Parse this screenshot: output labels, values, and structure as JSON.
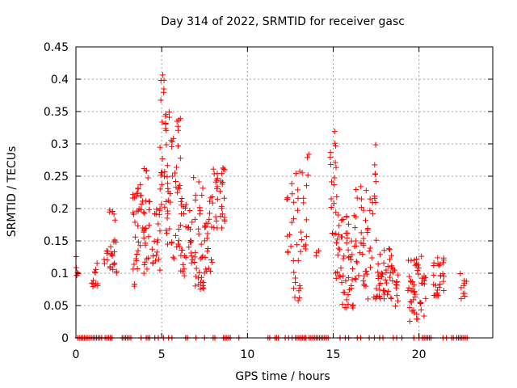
{
  "chart_data": {
    "type": "scatter",
    "title": "Day 314 of 2022, SRMTID for receiver gasc",
    "xlabel": "GPS time / hours",
    "ylabel": "SRMTID / TECUs",
    "xlim": [
      0,
      24.3
    ],
    "ylim": [
      0,
      0.45
    ],
    "x_ticks": [
      0,
      5,
      10,
      15,
      20
    ],
    "x_tick_labels": [
      "0",
      "5",
      "10",
      "15",
      "20"
    ],
    "y_ticks": [
      0,
      0.05,
      0.1,
      0.15,
      0.2,
      0.25,
      0.3,
      0.35,
      0.4,
      0.45
    ],
    "y_tick_labels": [
      "0",
      "0.05",
      "0.1",
      "0.15",
      "0.2",
      "0.25",
      "0.3",
      "0.35",
      "0.4",
      "0.45"
    ],
    "grid": true,
    "marker": "+",
    "colors": {
      "marker": "#ff0000",
      "grid": "#a0a0a0",
      "axis": "#000000"
    },
    "clusters": [
      {
        "x": [
          0.0,
          0.2
        ],
        "y": [
          0.09,
          0.13
        ],
        "n": 6
      },
      {
        "x": [
          0.9,
          1.3
        ],
        "y": [
          0.075,
          0.12
        ],
        "n": 12
      },
      {
        "x": [
          1.6,
          1.9
        ],
        "y": [
          0.115,
          0.135
        ],
        "n": 6
      },
      {
        "x": [
          1.95,
          2.4
        ],
        "y": [
          0.1,
          0.2
        ],
        "n": 22
      },
      {
        "x": [
          3.3,
          3.7
        ],
        "y": [
          0.07,
          0.24
        ],
        "n": 26
      },
      {
        "x": [
          3.7,
          4.3
        ],
        "y": [
          0.095,
          0.265
        ],
        "n": 34
      },
      {
        "x": [
          4.4,
          4.9
        ],
        "y": [
          0.1,
          0.21
        ],
        "n": 20
      },
      {
        "x": [
          4.9,
          5.2
        ],
        "y": [
          0.2,
          0.41
        ],
        "n": 18
      },
      {
        "x": [
          5.2,
          5.5
        ],
        "y": [
          0.13,
          0.35
        ],
        "n": 24
      },
      {
        "x": [
          5.5,
          6.1
        ],
        "y": [
          0.12,
          0.34
        ],
        "n": 32
      },
      {
        "x": [
          6.1,
          6.8
        ],
        "y": [
          0.09,
          0.22
        ],
        "n": 32
      },
      {
        "x": [
          6.8,
          7.5
        ],
        "y": [
          0.07,
          0.255
        ],
        "n": 34
      },
      {
        "x": [
          7.5,
          8.0
        ],
        "y": [
          0.1,
          0.22
        ],
        "n": 24
      },
      {
        "x": [
          8.0,
          8.7
        ],
        "y": [
          0.17,
          0.265
        ],
        "n": 30
      },
      {
        "x": [
          12.2,
          12.6
        ],
        "y": [
          0.13,
          0.25
        ],
        "n": 10
      },
      {
        "x": [
          12.6,
          13.1
        ],
        "y": [
          0.05,
          0.265
        ],
        "n": 22
      },
      {
        "x": [
          13.1,
          13.6
        ],
        "y": [
          0.12,
          0.29
        ],
        "n": 14
      },
      {
        "x": [
          14.0,
          14.3
        ],
        "y": [
          0.125,
          0.135
        ],
        "n": 3
      },
      {
        "x": [
          14.8,
          15.3
        ],
        "y": [
          0.09,
          0.32
        ],
        "n": 26
      },
      {
        "x": [
          15.3,
          16.2
        ],
        "y": [
          0.045,
          0.19
        ],
        "n": 46
      },
      {
        "x": [
          16.2,
          16.9
        ],
        "y": [
          0.08,
          0.24
        ],
        "n": 30
      },
      {
        "x": [
          16.9,
          17.6
        ],
        "y": [
          0.06,
          0.3
        ],
        "n": 30
      },
      {
        "x": [
          17.6,
          18.4
        ],
        "y": [
          0.06,
          0.14
        ],
        "n": 38
      },
      {
        "x": [
          18.4,
          18.8
        ],
        "y": [
          0.04,
          0.12
        ],
        "n": 14
      },
      {
        "x": [
          19.3,
          20.4
        ],
        "y": [
          0.025,
          0.13
        ],
        "n": 50
      },
      {
        "x": [
          20.8,
          21.5
        ],
        "y": [
          0.065,
          0.125
        ],
        "n": 28
      },
      {
        "x": [
          22.4,
          22.8
        ],
        "y": [
          0.06,
          0.105
        ],
        "n": 10
      }
    ],
    "zero_points_x": [
      0.1,
      0.2,
      0.3,
      0.4,
      0.5,
      0.6,
      0.7,
      0.8,
      0.9,
      1.0,
      1.1,
      1.2,
      1.3,
      1.4,
      1.5,
      1.7,
      1.8,
      1.9,
      2.0,
      2.1,
      2.7,
      2.8,
      2.9,
      3.0,
      3.1,
      3.2,
      3.8,
      4.1,
      4.2,
      4.3,
      4.6,
      4.8,
      5.1,
      5.4,
      5.6,
      6.4,
      6.5,
      7.0,
      7.5,
      8.0,
      8.1,
      8.6,
      8.7,
      8.8,
      8.9,
      9.0,
      9.5,
      11.2,
      11.3,
      11.6,
      11.7,
      11.8,
      12.2,
      12.4,
      12.6,
      12.8,
      12.9,
      13.0,
      13.1,
      13.2,
      13.3,
      13.4,
      13.6,
      13.7,
      13.8,
      13.9,
      14.0,
      14.1,
      14.2,
      14.3,
      14.4,
      14.5,
      14.6,
      14.7,
      15.4,
      15.7,
      15.9,
      16.4,
      16.6,
      17.1,
      17.4,
      17.7,
      17.9,
      18.5,
      18.7,
      19.0,
      19.7,
      20.0,
      20.2,
      20.3,
      20.4,
      20.5,
      20.6,
      20.7,
      21.4,
      21.6,
      21.9,
      22.0,
      22.2,
      22.3,
      22.4,
      22.5,
      22.6,
      22.7,
      22.8
    ]
  }
}
